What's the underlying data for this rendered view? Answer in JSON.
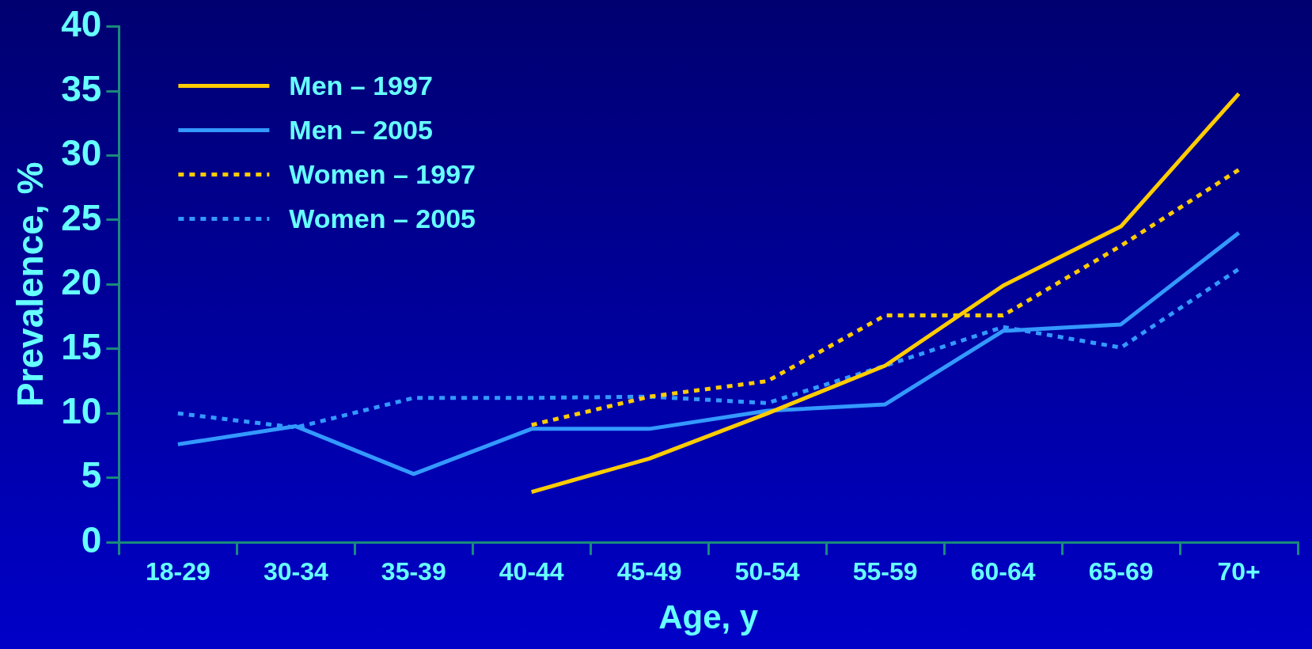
{
  "chart_data": {
    "type": "line",
    "xlabel": "Age, y",
    "ylabel": "Prevalence, %",
    "categories": [
      "18-29",
      "30-34",
      "35-39",
      "40-44",
      "45-49",
      "50-54",
      "55-59",
      "60-64",
      "65-69",
      "70+"
    ],
    "ylim": [
      0,
      40
    ],
    "yticks": [
      0,
      5,
      10,
      15,
      20,
      25,
      30,
      35,
      40
    ],
    "grid": false,
    "legend": "top left",
    "marker": "none",
    "series": [
      {
        "name": "Men – 1997",
        "color": "#ffcc00",
        "line_style": "solid",
        "values": [
          null,
          null,
          null,
          3.9,
          6.5,
          10.0,
          13.7,
          19.9,
          24.5,
          34.8
        ]
      },
      {
        "name": "Men – 2005",
        "color": "#3399ff",
        "line_style": "solid",
        "values": [
          7.6,
          9.0,
          5.3,
          8.8,
          8.8,
          10.2,
          10.7,
          16.4,
          16.9,
          24.0
        ]
      },
      {
        "name": "Women – 1997",
        "color": "#ffcc00",
        "line_style": "dotted",
        "values": [
          null,
          null,
          null,
          9.1,
          11.3,
          12.5,
          17.6,
          17.6,
          23.0,
          28.9
        ]
      },
      {
        "name": "Women – 2005",
        "color": "#3399ff",
        "line_style": "dotted",
        "values": [
          10.0,
          8.9,
          11.2,
          11.2,
          11.3,
          10.8,
          13.7,
          16.7,
          15.1,
          21.2
        ]
      }
    ]
  }
}
